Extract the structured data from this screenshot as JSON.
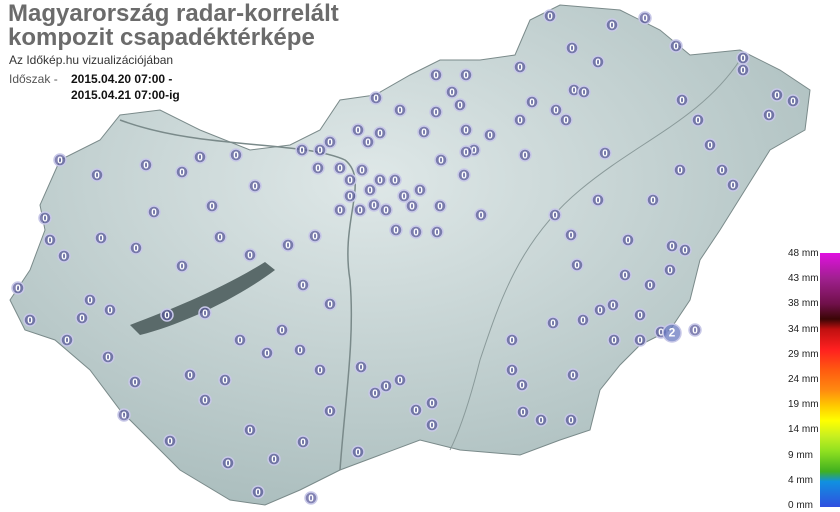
{
  "header": {
    "title_line1": "Magyarország radar-korrelált",
    "title_line2": "kompozit csapadéktérképe",
    "subtitle": "Az Időkép.hu vizualizációjában",
    "period_label": "Időszak -",
    "period_from": "2015.04.20 07:00 -",
    "period_to": "2015.04.21 07:00-ig"
  },
  "legend": {
    "unit": "mm",
    "labels": [
      "48 mm",
      "43 mm",
      "38 mm",
      "34 mm",
      "29 mm",
      "24 mm",
      "19 mm",
      "14 mm",
      "9 mm",
      "4 mm",
      "0 mm"
    ],
    "colors": [
      "#e010e0",
      "#a0208f",
      "#3a0505",
      "#c01010",
      "#ff2020",
      "#ff8a10",
      "#ffff00",
      "#90e020",
      "#40b020",
      "#1090e0",
      "#3050e0"
    ]
  },
  "map": {
    "region": "Hungary",
    "land_color": "#b8c8c8",
    "marker_color": "#5a5a9a",
    "station_values": [
      "0",
      "0",
      "0",
      "0",
      "0",
      "0",
      "0",
      "0",
      "0",
      "0",
      "0",
      "0",
      "0",
      "0",
      "0",
      "0",
      "0",
      "0",
      "0",
      "0",
      "0",
      "0",
      "0",
      "0",
      "0",
      "0",
      "0",
      "0",
      "0",
      "0",
      "0",
      "0",
      "0",
      "0",
      "0",
      "0",
      "0",
      "0",
      "0",
      "0",
      "0",
      "0",
      "0",
      "0",
      "0",
      "0",
      "0",
      "0",
      "0",
      "0",
      "0",
      "0",
      "0",
      "0",
      "0",
      "0",
      "0",
      "0",
      "0",
      "0",
      "0",
      "0",
      "0",
      "0",
      "0",
      "0",
      "0",
      "0",
      "0",
      "0",
      "0",
      "0",
      "0",
      "0",
      "0",
      "0",
      "0",
      "0",
      "0",
      "0",
      "0",
      "0",
      "0",
      "0",
      "0",
      "0",
      "0",
      "0",
      "0",
      "0",
      "0",
      "0",
      "0",
      "0",
      "0",
      "0",
      "0",
      "0",
      "0",
      "0",
      "0",
      "0",
      "0",
      "0",
      "0",
      "0",
      "0",
      "0",
      "0",
      "0",
      "0",
      "0",
      "0",
      "0",
      "0",
      "0",
      "0",
      "0",
      "0",
      "2"
    ]
  }
}
